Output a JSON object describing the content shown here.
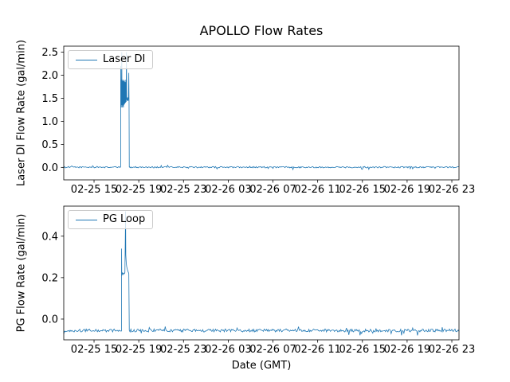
{
  "figure": {
    "title": "APOLLO Flow Rates",
    "background": "#ffffff",
    "accent_color": "#1f77b4"
  },
  "chart_data": [
    {
      "type": "line",
      "title": "APOLLO Flow Rates",
      "ylabel": "Laser DI Flow Rate (gal/min)",
      "legend": "Laser DI",
      "legend_position": "upper-left",
      "grid": false,
      "line_color": "#1f77b4",
      "y_ticks": [
        0.0,
        0.5,
        1.0,
        1.5,
        2.0,
        2.5
      ],
      "y_tick_labels": [
        "0.0",
        "0.5",
        "1.0",
        "1.5",
        "2.0",
        "2.5"
      ],
      "ylim": [
        -0.27,
        2.63
      ],
      "x_tick_labels": [
        "02-25 15",
        "02-25 19",
        "02-25 23",
        "02-26 03",
        "02-26 07",
        "02-26 11",
        "02-26 15",
        "02-26 19",
        "02-26 23"
      ],
      "x_tick_hours": [
        15,
        19,
        23,
        27,
        31,
        35,
        39,
        43,
        47
      ],
      "xlim_hours": [
        12.29,
        47.64
      ],
      "series": {
        "name": "Laser DI",
        "color": "#1f77b4",
        "segments": [
          {
            "type": "noisy",
            "x0": 12.29,
            "x1": 17.38,
            "y": 0.005,
            "amp": 0.015
          },
          {
            "type": "path",
            "points": [
              [
                17.38,
                0.005
              ],
              [
                17.385,
                2.2
              ],
              [
                17.39,
                1.45
              ],
              [
                17.42,
                1.9
              ],
              [
                17.44,
                1.3
              ],
              [
                17.46,
                1.92
              ],
              [
                17.48,
                2.5
              ],
              [
                17.5,
                1.35
              ],
              [
                17.52,
                1.88
              ],
              [
                17.54,
                1.3
              ],
              [
                17.56,
                1.9
              ],
              [
                17.58,
                1.33
              ],
              [
                17.6,
                1.87
              ],
              [
                17.63,
                1.3
              ],
              [
                17.66,
                1.9
              ],
              [
                17.69,
                1.36
              ],
              [
                17.72,
                1.88
              ],
              [
                17.75,
                1.38
              ],
              [
                17.78,
                1.85
              ],
              [
                17.81,
                1.4
              ],
              [
                17.84,
                1.9
              ],
              [
                17.87,
                1.42
              ],
              [
                17.9,
                2.5
              ],
              [
                17.92,
                1.5
              ],
              [
                17.95,
                1.45
              ],
              [
                18.0,
                1.52
              ],
              [
                18.04,
                1.44
              ],
              [
                18.08,
                1.5
              ],
              [
                18.11,
                2.05
              ],
              [
                18.13,
                1.45
              ],
              [
                18.15,
                0.005
              ]
            ]
          },
          {
            "type": "noisy",
            "x0": 18.15,
            "x1": 47.64,
            "y": 0.005,
            "amp": 0.015
          }
        ]
      }
    },
    {
      "type": "line",
      "ylabel": "PG Flow Rate (gal/min)",
      "xlabel": "Date (GMT)",
      "legend": "PG Loop",
      "legend_position": "upper-left",
      "grid": false,
      "line_color": "#1f77b4",
      "y_ticks": [
        0.0,
        0.2,
        0.4
      ],
      "y_tick_labels": [
        "0.0",
        "0.2",
        "0.4"
      ],
      "ylim": [
        -0.1,
        0.545
      ],
      "x_tick_labels": [
        "02-25 15",
        "02-25 19",
        "02-25 23",
        "02-26 03",
        "02-26 07",
        "02-26 11",
        "02-26 15",
        "02-26 19",
        "02-26 23"
      ],
      "x_tick_hours": [
        15,
        19,
        23,
        27,
        31,
        35,
        39,
        43,
        47
      ],
      "xlim_hours": [
        12.29,
        47.64
      ],
      "series": {
        "name": "PG Loop",
        "color": "#1f77b4",
        "segments": [
          {
            "type": "noisy",
            "x0": 12.29,
            "x1": 17.45,
            "y": -0.055,
            "amp": 0.007
          },
          {
            "type": "path",
            "points": [
              [
                17.45,
                -0.055
              ],
              [
                17.46,
                0.34
              ],
              [
                17.48,
                0.21
              ],
              [
                17.52,
                0.225
              ],
              [
                17.58,
                0.215
              ],
              [
                17.64,
                0.222
              ],
              [
                17.7,
                0.218
              ],
              [
                17.76,
                0.225
              ],
              [
                17.82,
                0.52
              ],
              [
                17.84,
                0.31
              ],
              [
                17.88,
                0.27
              ],
              [
                17.93,
                0.25
              ],
              [
                17.99,
                0.238
              ],
              [
                18.05,
                0.228
              ],
              [
                18.11,
                0.22
              ],
              [
                18.15,
                -0.055
              ]
            ]
          },
          {
            "type": "noisy",
            "x0": 18.15,
            "x1": 47.64,
            "y": -0.055,
            "amp": 0.007
          }
        ]
      }
    }
  ]
}
